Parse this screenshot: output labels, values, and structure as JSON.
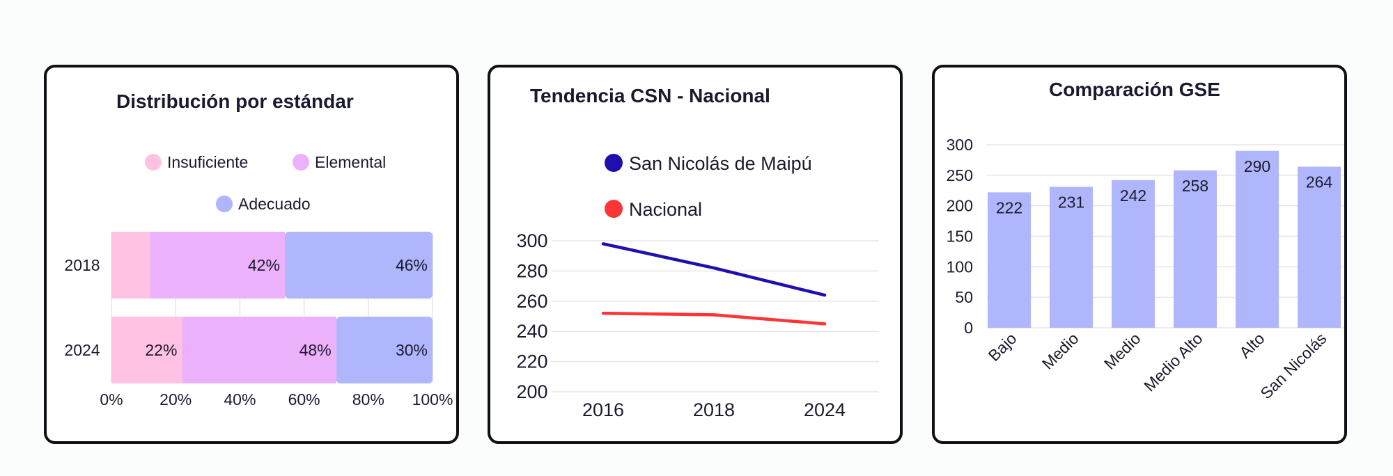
{
  "colors": {
    "insuficiente": "#ffc2e2",
    "elemental": "#ecb1fb",
    "adecuado": "#afb6fb",
    "san_nicolas_line": "#1f0fb1",
    "nacional_line": "#ff3535",
    "gse_bar": "#afb6fb"
  },
  "chart_data": [
    {
      "type": "bar",
      "orientation": "horizontal",
      "stacked": true,
      "title": "Distribución por estándar",
      "categories": [
        "2018",
        "2024"
      ],
      "series": [
        {
          "name": "Insuficiente",
          "values": [
            12,
            22
          ],
          "labels": [
            "",
            "22%"
          ]
        },
        {
          "name": "Elemental",
          "values": [
            42,
            48
          ],
          "labels": [
            "42%",
            "48%"
          ]
        },
        {
          "name": "Adecuado",
          "values": [
            46,
            30
          ],
          "labels": [
            "46%",
            "30%"
          ]
        }
      ],
      "xlim": [
        0,
        100
      ],
      "xticks": [
        "0%",
        "20%",
        "40%",
        "60%",
        "80%",
        "100%"
      ],
      "legend": "top"
    },
    {
      "type": "line",
      "title": "Tendencia CSN - Nacional",
      "x": [
        "2016",
        "2018",
        "2024"
      ],
      "series": [
        {
          "name": "San Nicolás de Maipú",
          "values": [
            298,
            282,
            264
          ]
        },
        {
          "name": "Nacional",
          "values": [
            252,
            251,
            245
          ]
        }
      ],
      "ylim": [
        200,
        300
      ],
      "yticks": [
        "200",
        "220",
        "240",
        "260",
        "280",
        "300"
      ],
      "grid": true,
      "legend": "top"
    },
    {
      "type": "bar",
      "title": "Comparación GSE",
      "categories": [
        "Bajo",
        "Medio",
        "Medio",
        "Medio Alto",
        "Alto",
        "San Nicolás"
      ],
      "values": [
        222,
        231,
        242,
        258,
        290,
        264
      ],
      "labels": [
        "222",
        "231",
        "242",
        "258",
        "290",
        "264"
      ],
      "ylim": [
        0,
        300
      ],
      "yticks": [
        "0",
        "50",
        "100",
        "150",
        "200",
        "250",
        "300"
      ],
      "grid": true
    }
  ]
}
